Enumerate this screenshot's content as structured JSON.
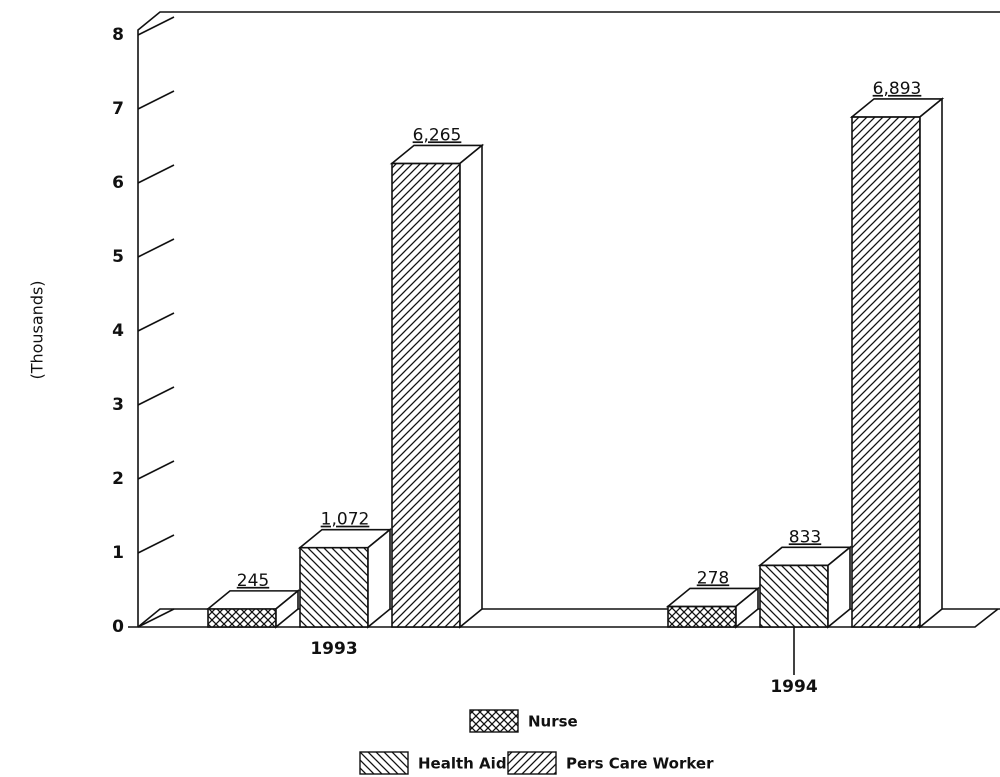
{
  "chart_data": {
    "type": "bar3d",
    "y_label": "(Thousands)",
    "categories": [
      "1993",
      "1994"
    ],
    "series": [
      {
        "name": "Nurse",
        "color": "#111111",
        "pattern": "crosshatch",
        "values": [
          0.245,
          0.278
        ],
        "value_labels": [
          "245",
          "278"
        ]
      },
      {
        "name": "Health Aide",
        "color": "#111111",
        "pattern": "backslash",
        "values": [
          1.072,
          0.833
        ],
        "value_labels": [
          "1,072",
          "833"
        ]
      },
      {
        "name": "Pers Care Worker",
        "color": "#111111",
        "pattern": "slash",
        "values": [
          6.265,
          6.893
        ],
        "value_labels": [
          "6,265",
          "6,893"
        ]
      }
    ],
    "ylim": [
      0,
      8
    ],
    "yticks": [
      0,
      1,
      2,
      3,
      4,
      5,
      6,
      7,
      8
    ]
  }
}
